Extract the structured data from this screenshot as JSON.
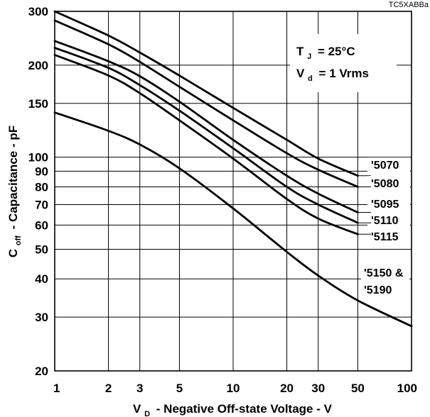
{
  "chart_data": {
    "type": "line",
    "code": "TC5XABBa",
    "xlabel": "- Negative Off-state Voltage - V",
    "xlabel_symbol": "V",
    "xlabel_subscript": "D",
    "ylabel": "- Capacitance - pF",
    "ylabel_symbol": "C",
    "ylabel_subscript": "off",
    "x_scale": "log",
    "y_scale": "log",
    "xlim": [
      1,
      100
    ],
    "ylim": [
      20,
      300
    ],
    "grid": true,
    "x_ticks": [
      1,
      2,
      3,
      5,
      10,
      20,
      30,
      50,
      100
    ],
    "x_tick_labels": [
      "1",
      "2",
      "3",
      "5",
      "10",
      "20",
      "30",
      "50",
      "100"
    ],
    "y_ticks": [
      20,
      30,
      40,
      50,
      60,
      70,
      80,
      90,
      100,
      150,
      200,
      300
    ],
    "y_tick_labels": [
      "20",
      "30",
      "40",
      "50",
      "60",
      "70",
      "80",
      "90",
      "100",
      "150",
      "200",
      "300"
    ],
    "conditions": {
      "tj": {
        "symbol": "T",
        "subscript": "J",
        "value": "= 25°C"
      },
      "vd": {
        "symbol": "V",
        "subscript": "d",
        "value": "= 1 Vrms"
      }
    },
    "series": [
      {
        "name": "'5070",
        "label_lines": [
          "'5070"
        ],
        "x": [
          1,
          2,
          3,
          5,
          10,
          20,
          30,
          50
        ],
        "y": [
          300,
          250,
          220,
          185,
          145,
          114,
          99,
          87
        ]
      },
      {
        "name": "'5080",
        "label_lines": [
          "'5080"
        ],
        "x": [
          1,
          2,
          3,
          5,
          10,
          20,
          30,
          50
        ],
        "y": [
          280,
          234,
          205,
          170,
          132,
          103,
          91,
          80
        ]
      },
      {
        "name": "'5095",
        "label_lines": [
          "'5095"
        ],
        "x": [
          1,
          2,
          3,
          5,
          10,
          20,
          30,
          50
        ],
        "y": [
          240,
          206,
          184,
          152,
          114,
          87,
          76,
          66
        ]
      },
      {
        "name": "'5110",
        "label_lines": [
          "'5110"
        ],
        "x": [
          1,
          2,
          3,
          5,
          10,
          20,
          30,
          50
        ],
        "y": [
          228,
          196,
          172,
          142,
          107,
          80,
          70,
          61
        ]
      },
      {
        "name": "'5115",
        "label_lines": [
          "'5115"
        ],
        "x": [
          1,
          2,
          3,
          5,
          10,
          20,
          30,
          50
        ],
        "y": [
          216,
          185,
          162,
          132,
          99,
          73,
          63,
          56
        ]
      },
      {
        "name": "'5150 & '5190",
        "label_lines": [
          "'5150 &",
          "'5190"
        ],
        "x": [
          1,
          2,
          3,
          5,
          10,
          20,
          30,
          50,
          100
        ],
        "y": [
          140,
          122,
          110,
          92,
          68,
          49,
          41,
          34,
          28
        ]
      }
    ]
  }
}
